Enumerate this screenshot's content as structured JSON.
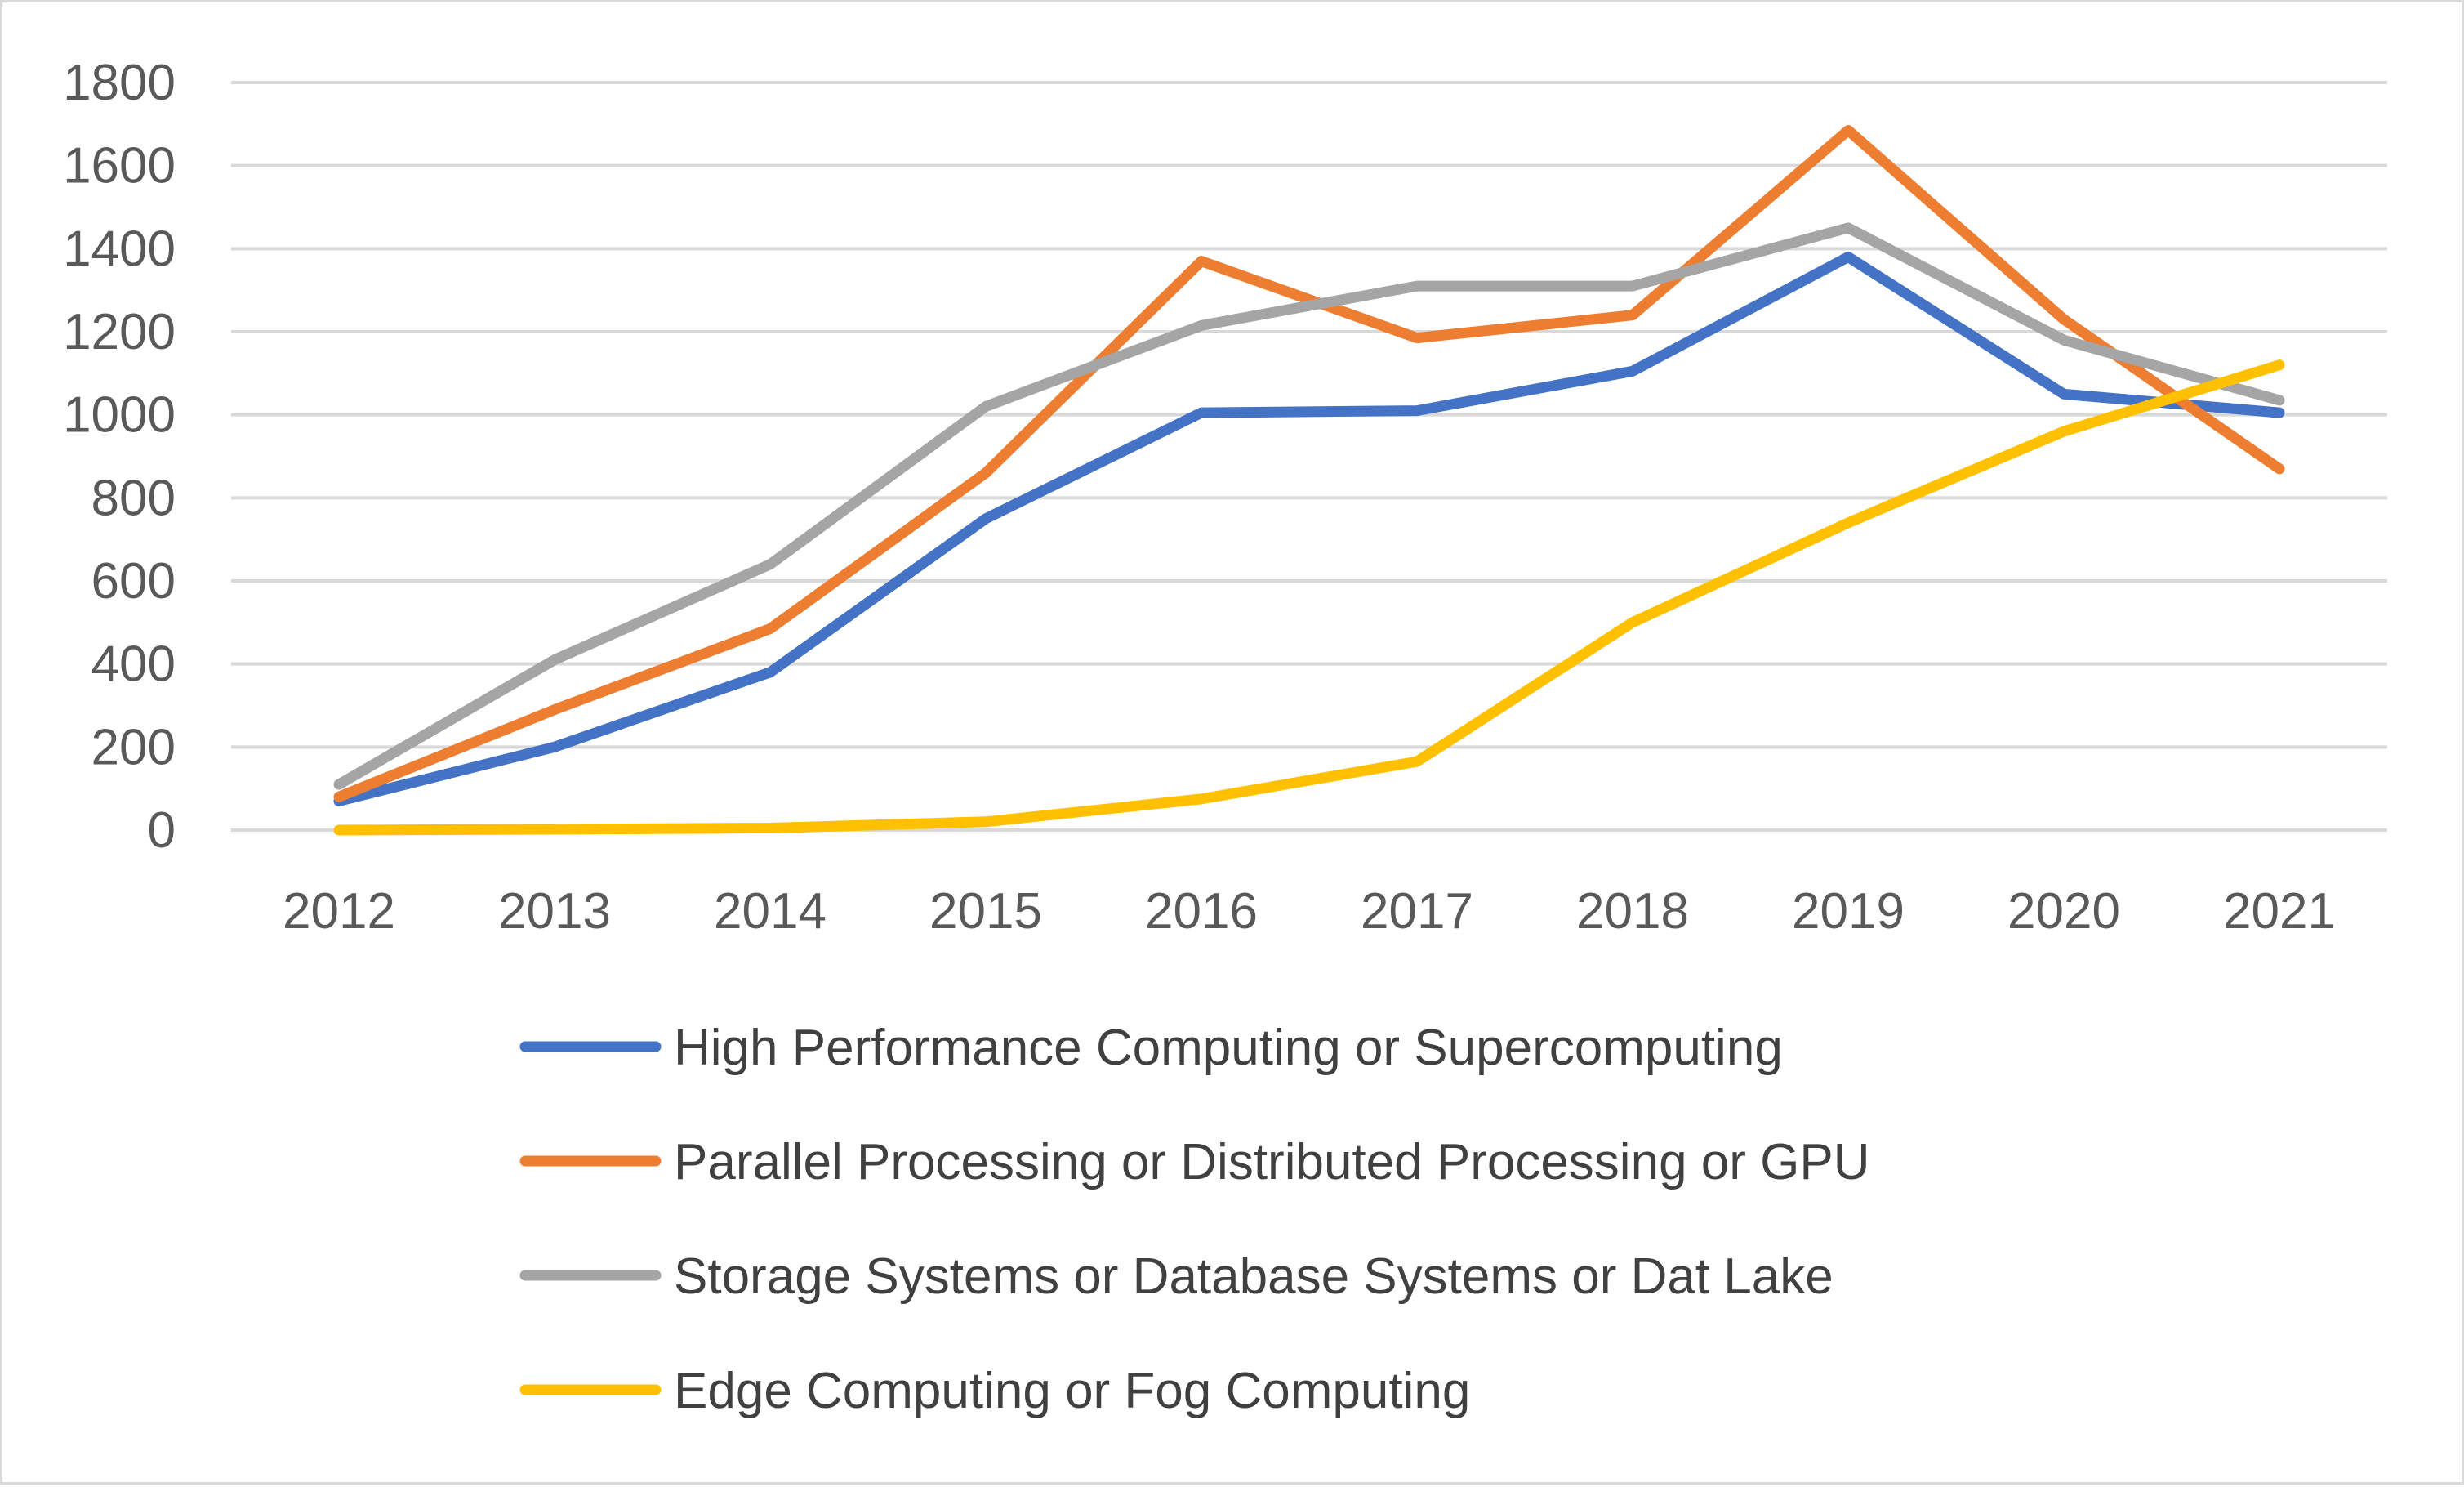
{
  "chart_data": {
    "type": "line",
    "title": "",
    "xlabel": "",
    "ylabel": "",
    "categories": [
      "2012",
      "2013",
      "2014",
      "2015",
      "2016",
      "2017",
      "2018",
      "2019",
      "2020",
      "2021"
    ],
    "ylim": [
      0,
      1800
    ],
    "yticks": [
      "0",
      "200",
      "400",
      "600",
      "800",
      "1000",
      "1200",
      "1400",
      "1600",
      "1800"
    ],
    "grid": true,
    "legend_position": "bottom",
    "series": [
      {
        "name": "High Performance Computing or Supercomputing",
        "color": "#4472c4",
        "values": [
          70,
          200,
          380,
          750,
          1005,
          1010,
          1105,
          1380,
          1050,
          1005
        ]
      },
      {
        "name": "Parallel Processing or Distributed Processing or GPU",
        "color": "#ed7d31",
        "values": [
          80,
          290,
          485,
          860,
          1370,
          1185,
          1240,
          1685,
          1230,
          870
        ]
      },
      {
        "name": "Storage Systems or Database Systems or Dat Lake",
        "color": "#a5a5a5",
        "values": [
          110,
          410,
          640,
          1020,
          1215,
          1310,
          1310,
          1450,
          1180,
          1035
        ]
      },
      {
        "name": "Edge Computing or Fog Computing",
        "color": "#ffc000",
        "values": [
          0,
          2,
          5,
          20,
          75,
          165,
          500,
          740,
          960,
          1120
        ]
      }
    ]
  }
}
